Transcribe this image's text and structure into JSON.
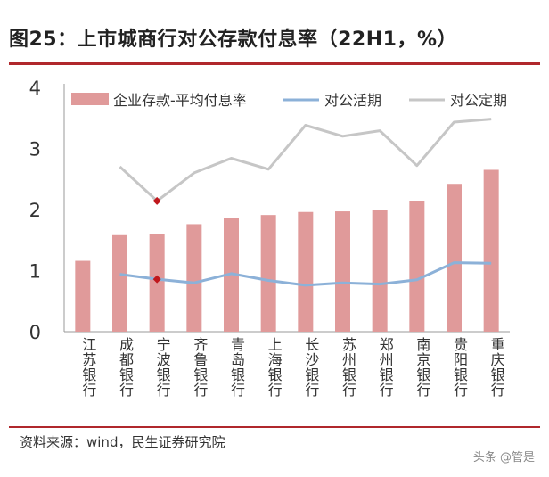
{
  "header": {
    "title": "图25：上市城商行对公存款付息率（22H1，%）"
  },
  "footer": {
    "source": "资料来源：wind，民生证券研究院",
    "watermark": "头条 @管是"
  },
  "colors": {
    "bar": "#e09a9a",
    "active_line": "#8cb1d8",
    "fixed_line": "#c6c6c6",
    "highlight": "#c0171c",
    "rule": "#b0282c"
  },
  "chart_data": {
    "type": "bar+line",
    "categories": [
      "江苏银行",
      "成都银行",
      "宁波银行",
      "齐鲁银行",
      "青岛银行",
      "上海银行",
      "长沙银行",
      "苏州银行",
      "郑州银行",
      "南京银行",
      "贵阳银行",
      "重庆银行"
    ],
    "series": [
      {
        "name": "企业存款-平均付息率",
        "type": "bar",
        "values": [
          1.16,
          1.58,
          1.6,
          1.76,
          1.86,
          1.91,
          1.96,
          1.97,
          2.0,
          2.14,
          2.42,
          2.65
        ]
      },
      {
        "name": "对公活期",
        "type": "line",
        "values": [
          null,
          0.94,
          0.86,
          0.8,
          0.95,
          0.84,
          0.76,
          0.8,
          0.78,
          0.85,
          1.13,
          1.12
        ]
      },
      {
        "name": "对公定期",
        "type": "line",
        "values": [
          null,
          2.7,
          2.14,
          2.6,
          2.84,
          2.66,
          3.38,
          3.2,
          3.29,
          2.72,
          3.43,
          3.48
        ]
      }
    ],
    "highlight_index": 2,
    "ylim": [
      0,
      4
    ],
    "yticks": [
      "0",
      "1",
      "2",
      "3",
      "4"
    ],
    "title": "图25：上市城商行对公存款付息率（22H1，%）",
    "legend_position": "top"
  }
}
